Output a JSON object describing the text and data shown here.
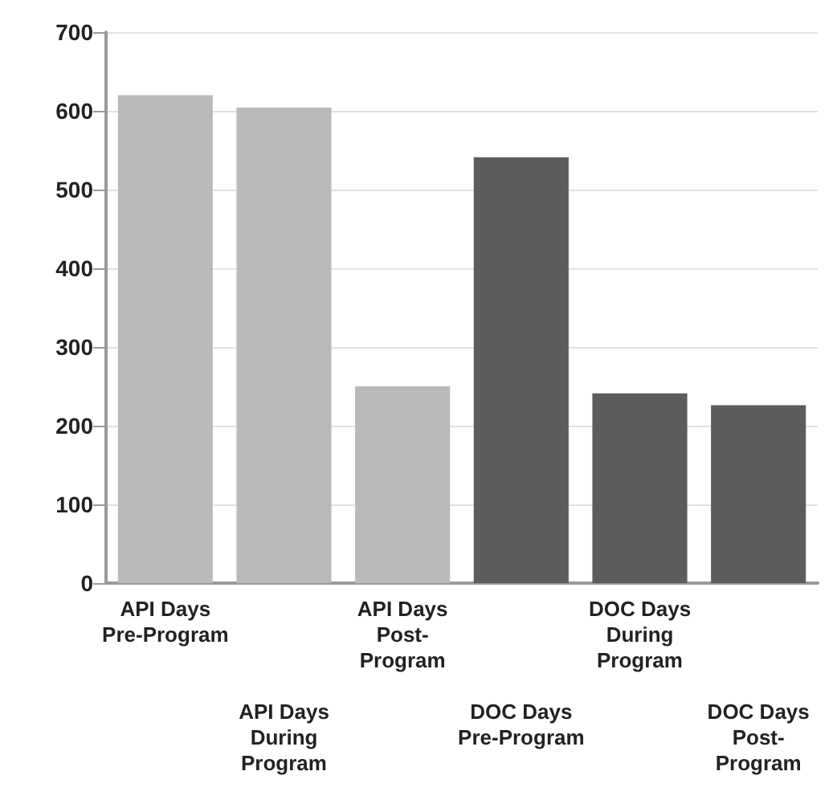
{
  "chart_data": {
    "type": "bar",
    "categories": [
      "API Days Pre-Program",
      "API Days During Program",
      "API Days Post-Program",
      "DOC Days Pre-Program",
      "DOC Days During Program",
      "DOC Days Post-Program"
    ],
    "values": [
      620,
      604,
      250,
      541,
      241,
      226
    ],
    "colors": [
      "#bababa",
      "#bababa",
      "#bababa",
      "#5c5c5c",
      "#5c5c5c",
      "#5c5c5c"
    ],
    "ylim": [
      0,
      700
    ],
    "yticks": [
      0,
      100,
      200,
      300,
      400,
      500,
      600,
      700
    ],
    "grid": "y"
  }
}
